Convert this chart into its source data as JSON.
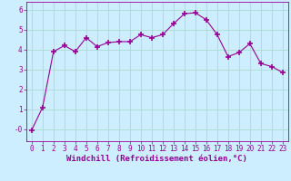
{
  "x": [
    0,
    1,
    2,
    3,
    4,
    5,
    6,
    7,
    8,
    9,
    10,
    11,
    12,
    13,
    14,
    15,
    16,
    17,
    18,
    19,
    20,
    21,
    22,
    23
  ],
  "y": [
    -0.05,
    1.1,
    3.9,
    4.2,
    3.9,
    4.6,
    4.15,
    4.35,
    4.4,
    4.4,
    4.75,
    4.6,
    4.75,
    5.3,
    5.8,
    5.85,
    5.5,
    4.75,
    3.65,
    3.85,
    4.3,
    3.3,
    3.15,
    2.85
  ],
  "line_color": "#990099",
  "marker": "+",
  "marker_size": 4,
  "bg_color": "#cceeff",
  "grid_color": "#aaddcc",
  "xlabel": "Windchill (Refroidissement éolien,°C)",
  "xlabel_color": "#990099",
  "tick_color": "#990099",
  "ylim": [
    -0.6,
    6.4
  ],
  "xlim": [
    -0.5,
    23.5
  ],
  "yticks": [
    0,
    1,
    2,
    3,
    4,
    5,
    6
  ],
  "ytick_labels": [
    "-0",
    "1",
    "2",
    "3",
    "4",
    "5",
    "6"
  ],
  "xticks": [
    0,
    1,
    2,
    3,
    4,
    5,
    6,
    7,
    8,
    9,
    10,
    11,
    12,
    13,
    14,
    15,
    16,
    17,
    18,
    19,
    20,
    21,
    22,
    23
  ],
  "font_size": 5.5,
  "xlabel_font_size": 6.5
}
